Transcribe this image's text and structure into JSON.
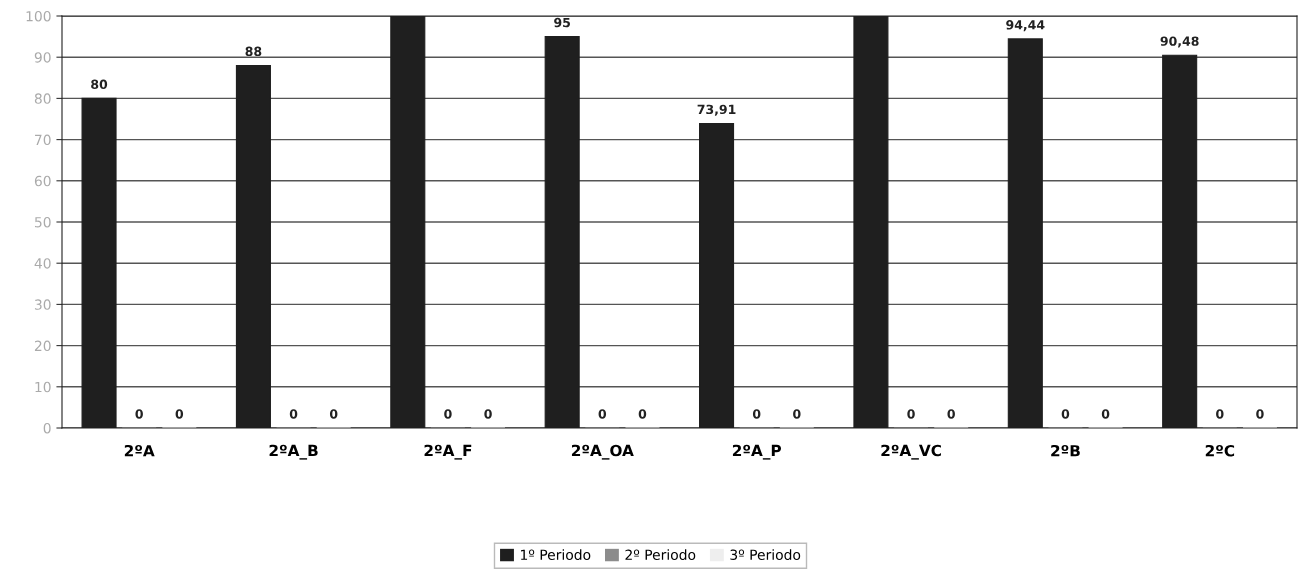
{
  "chart_data": {
    "type": "bar",
    "categories": [
      "2ºA",
      "2ºA_B",
      "2ºA_F",
      "2ºA_OA",
      "2ºA_P",
      "2ºA_VC",
      "2ºB",
      "2ºC"
    ],
    "series": [
      {
        "name": "1º Periodo",
        "color": "#1f1f1f",
        "values": [
          80,
          88,
          100,
          95,
          73.91,
          100,
          94.44,
          90.48
        ],
        "value_labels": [
          "80",
          "88",
          null,
          "95",
          "73,91",
          null,
          "94,44",
          "90,48"
        ]
      },
      {
        "name": "2º Periodo",
        "color": "#8c8c8c",
        "values": [
          0,
          0,
          0,
          0,
          0,
          0,
          0,
          0
        ],
        "value_labels": [
          "0",
          "0",
          "0",
          "0",
          "0",
          "0",
          "0",
          "0"
        ]
      },
      {
        "name": "3º Periodo",
        "color": "#eeeeee",
        "values": [
          0,
          0,
          0,
          0,
          0,
          0,
          0,
          0
        ],
        "value_labels": [
          "0",
          "0",
          "0",
          "0",
          "0",
          "0",
          "0",
          "0"
        ]
      }
    ],
    "ylim": [
      0,
      100
    ],
    "yticks": [
      0,
      10,
      20,
      30,
      40,
      50,
      60,
      70,
      80,
      90,
      100
    ],
    "grid": "y",
    "legend": "bottom"
  }
}
